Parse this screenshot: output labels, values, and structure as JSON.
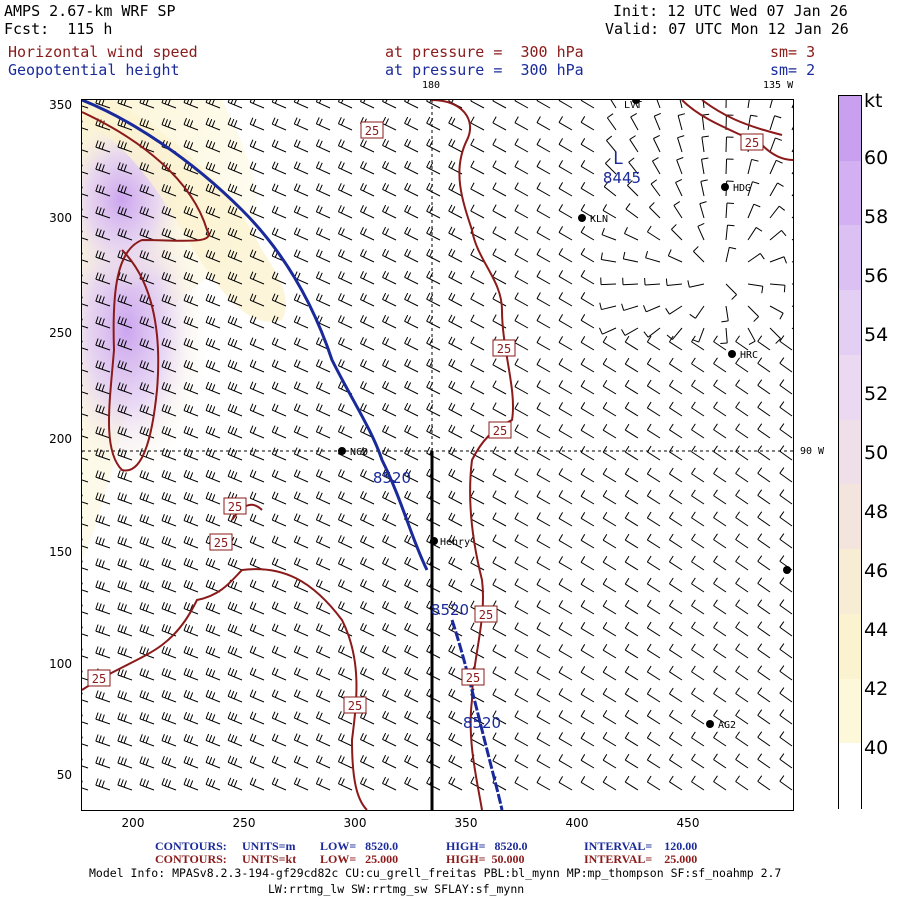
{
  "header": {
    "model": "AMPS 2.67-km WRF SP",
    "fcst": "Fcst:  115 h",
    "init": "Init: 12 UTC Wed 07 Jan 26",
    "valid": "Valid: 07 UTC Mon 12 Jan 26",
    "field1": "Horizontal wind speed",
    "field2": "Geopotential height",
    "lev1": "at pressure =  300 hPa",
    "lev2": "at pressure =  300 hPa",
    "sm1": "sm= 3",
    "sm2": "sm= 2"
  },
  "map": {
    "lon_labels": {
      "top_180": "180",
      "top_135w": "135 W",
      "right_90w": "90 W"
    },
    "stations": [
      "NCO",
      "Henry",
      "KLN",
      "HDG",
      "HRC",
      "AG2",
      "LVT"
    ],
    "low_label": "L",
    "low_value": "8445",
    "height_labels": [
      "8520",
      "8520",
      "8520"
    ],
    "speed_labels": [
      "25",
      "25",
      "25",
      "25",
      "25",
      "25",
      "25",
      "25",
      "25",
      "25"
    ],
    "x_ticks": [
      "200",
      "250",
      "300",
      "350",
      "400",
      "450"
    ],
    "y_ticks": [
      "350",
      "300",
      "250",
      "200",
      "150",
      "100",
      "50"
    ]
  },
  "colorbar": {
    "unit": "kt",
    "labels": [
      "60",
      "58",
      "56",
      "54",
      "52",
      "50",
      "48",
      "46",
      "44",
      "42",
      "40"
    ],
    "colors": [
      "#c9a0f0",
      "#d2b0f2",
      "#dbc0f3",
      "#e3cff3",
      "#ead9f1",
      "#efdfe8",
      "#f3e5dd",
      "#f7ecd4",
      "#fbf3cf",
      "#fdf8d9",
      "#ffffff"
    ]
  },
  "footer": {
    "line1_contours": "CONTOURS:",
    "line1_units": "UNITS=m",
    "line1_low": "LOW=   8520.0",
    "line1_high": "HIGH=   8520.0",
    "line1_interval": "INTERVAL=    120.00",
    "line2_contours": "CONTOURS:",
    "line2_units": "UNITS=kt",
    "line2_low": "LOW=   25.000",
    "line2_high": "HIGH=  50.000",
    "line2_interval": "INTERVAL=    25.000",
    "info1": "Model Info: MPASv8.2.3-194-gf29cd82c CU:cu_grell_freitas PBL:bl_mynn MP:mp_thompson SF:sf_noahmp 2.7",
    "info2": "LW:rrtmg_lw SW:rrtmg_sw SFLAY:sf_mynn"
  },
  "colors": {
    "height_contour": "#1a2a9a",
    "speed_contour": "#8b1a1a",
    "barb": "#000000"
  }
}
